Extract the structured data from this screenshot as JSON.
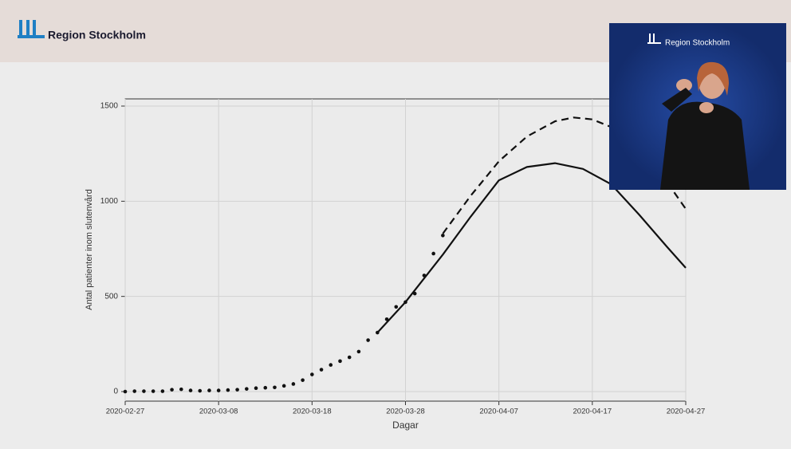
{
  "header": {
    "logo_text": "Region Stockholm"
  },
  "overlay": {
    "logo_text": "Region Stockholm"
  },
  "chart_data": {
    "type": "line",
    "x_label": "Dagar",
    "y_label": "Antal patienter inom slutenvård",
    "xlim": [
      "2020-02-27",
      "2020-04-27"
    ],
    "xticks": [
      "2020-02-27",
      "2020-03-08",
      "2020-03-18",
      "2020-03-28",
      "2020-04-07",
      "2020-04-17",
      "2020-04-27"
    ],
    "ylim": [
      0,
      1500
    ],
    "yticks": [
      0,
      500,
      1000,
      1500
    ],
    "grid": true,
    "series": [
      {
        "type": "scatter",
        "color": "#111111",
        "x": [
          "2020-02-27",
          "2020-02-28",
          "2020-02-29",
          "2020-03-01",
          "2020-03-02",
          "2020-03-03",
          "2020-03-04",
          "2020-03-05",
          "2020-03-06",
          "2020-03-07",
          "2020-03-08",
          "2020-03-09",
          "2020-03-10",
          "2020-03-11",
          "2020-03-12",
          "2020-03-13",
          "2020-03-14",
          "2020-03-15",
          "2020-03-16",
          "2020-03-17",
          "2020-03-18",
          "2020-03-19",
          "2020-03-20",
          "2020-03-21",
          "2020-03-22",
          "2020-03-23",
          "2020-03-24",
          "2020-03-25",
          "2020-03-26",
          "2020-03-27",
          "2020-03-28",
          "2020-03-29",
          "2020-03-30",
          "2020-03-31",
          "2020-04-01"
        ],
        "values": [
          0,
          2,
          2,
          2,
          2,
          10,
          12,
          6,
          4,
          6,
          6,
          8,
          10,
          14,
          18,
          20,
          22,
          30,
          40,
          60,
          90,
          115,
          140,
          160,
          180,
          210,
          270,
          310,
          380,
          445,
          470,
          515,
          610,
          725,
          820
        ]
      },
      {
        "type": "line",
        "style": "solid",
        "color": "#111111",
        "x": [
          "2020-03-25",
          "2020-03-28",
          "2020-04-01",
          "2020-04-04",
          "2020-04-07",
          "2020-04-10",
          "2020-04-13",
          "2020-04-16",
          "2020-04-19",
          "2020-04-22",
          "2020-04-25",
          "2020-04-27"
        ],
        "values": [
          310,
          470,
          720,
          920,
          1110,
          1180,
          1200,
          1170,
          1090,
          930,
          760,
          650
        ]
      },
      {
        "type": "line",
        "style": "dashed",
        "color": "#111111",
        "x": [
          "2020-04-01",
          "2020-04-04",
          "2020-04-07",
          "2020-04-10",
          "2020-04-13",
          "2020-04-15",
          "2020-04-17",
          "2020-04-20",
          "2020-04-23",
          "2020-04-25",
          "2020-04-27"
        ],
        "values": [
          830,
          1030,
          1210,
          1340,
          1420,
          1440,
          1430,
          1370,
          1230,
          1100,
          960
        ]
      }
    ]
  }
}
